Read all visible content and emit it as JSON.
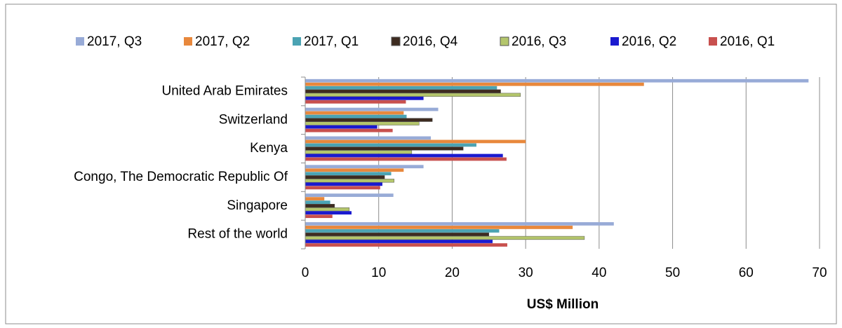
{
  "chart_data": {
    "type": "hbar",
    "xlabel": "US$ Million",
    "categories": [
      "United Arab Emirates",
      "Switzerland",
      "Kenya",
      "Congo, The Democratic Republic Of",
      "Singapore",
      "Rest of the world"
    ],
    "series": [
      {
        "name": "2017, Q3",
        "color": "#98abd7",
        "values": [
          68.5,
          18.1,
          17.1,
          16.1,
          12.0,
          42.0
        ]
      },
      {
        "name": "2017, Q2",
        "color": "#e8883c",
        "values": [
          46.1,
          13.4,
          30.0,
          13.4,
          2.6,
          36.4
        ]
      },
      {
        "name": "2017, Q1",
        "color": "#4ba3b3",
        "values": [
          26.1,
          13.8,
          23.3,
          11.7,
          3.4,
          26.4
        ]
      },
      {
        "name": "2016, Q4",
        "color": "#3d2b20",
        "values": [
          26.6,
          17.3,
          21.5,
          10.8,
          4.0,
          25.0
        ]
      },
      {
        "name": "2016, Q3",
        "color": "#b4c66c",
        "values": [
          29.3,
          15.5,
          14.5,
          12.1,
          6.0,
          38.0
        ]
      },
      {
        "name": "2016, Q2",
        "color": "#1a1acf",
        "values": [
          16.1,
          9.8,
          26.9,
          10.5,
          6.3,
          25.5
        ]
      },
      {
        "name": "2016, Q1",
        "color": "#c8504e",
        "values": [
          13.7,
          11.9,
          27.4,
          10.2,
          3.7,
          27.5
        ]
      }
    ],
    "xlim": [
      0,
      70
    ],
    "xticks": [
      0,
      10,
      20,
      30,
      40,
      50,
      60,
      70
    ],
    "grid": true
  }
}
